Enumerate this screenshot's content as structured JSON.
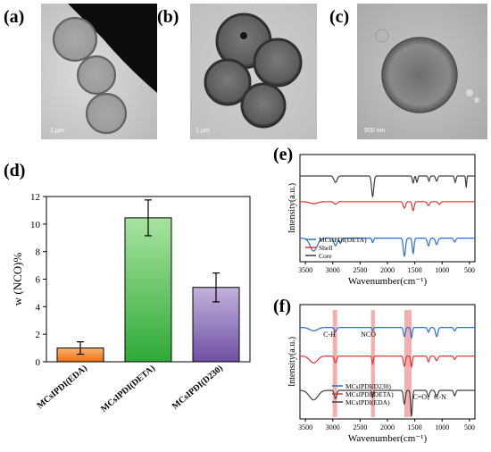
{
  "panels": {
    "a": {
      "label": "(a)",
      "scale": "1 μm"
    },
    "b": {
      "label": "(b)",
      "scale": "1 μm"
    },
    "c": {
      "label": "(c)",
      "scale": "500 nm"
    },
    "d": {
      "label": "(d)"
    },
    "e": {
      "label": "(e)"
    },
    "f": {
      "label": "(f)"
    }
  },
  "chart_data": [
    {
      "id": "d",
      "type": "bar",
      "categories": [
        "MCsIPDI(EDA)",
        "MCsIPDI(DETA)",
        "MCsIPDI(D230)"
      ],
      "values": [
        1.0,
        10.45,
        5.4
      ],
      "errors": [
        0.45,
        1.3,
        1.05
      ],
      "ylabel": "w (NCO)%",
      "ylim": [
        0,
        12
      ],
      "yticks": [
        0,
        2,
        4,
        6,
        8,
        10,
        12
      ],
      "colors_top": [
        "#fbb46f",
        "#a8e3a0",
        "#c4b2dc"
      ],
      "colors_bottom": [
        "#ef6f12",
        "#2faa37",
        "#6e4fa3"
      ]
    },
    {
      "id": "e",
      "type": "line",
      "xlabel": "Wavenumber(cm⁻¹)",
      "ylabel": "Intensity(a.u.)",
      "xlim": [
        3600,
        400
      ],
      "xticks": [
        3500,
        3000,
        2500,
        2000,
        1500,
        1000,
        500
      ],
      "series": [
        {
          "name": "Core",
          "color": "#404040",
          "offset": 0.8,
          "depth": 0.12,
          "peaks": [
            [
              2950,
              0.5,
              40
            ],
            [
              2270,
              1.6,
              28
            ],
            [
              1530,
              0.55,
              20
            ],
            [
              1460,
              0.5,
              18
            ],
            [
              1240,
              0.4,
              20
            ],
            [
              1100,
              0.4,
              25
            ],
            [
              760,
              0.5,
              20
            ],
            [
              560,
              0.9,
              12
            ]
          ]
        },
        {
          "name": "Shell",
          "color": "#e03535",
          "offset": 0.56,
          "depth": 0.12,
          "peaks": [
            [
              3350,
              0.15,
              100
            ],
            [
              2950,
              0.2,
              40
            ],
            [
              1690,
              0.5,
              30
            ],
            [
              1530,
              0.7,
              25
            ],
            [
              1250,
              0.3,
              30
            ],
            [
              1050,
              0.2,
              30
            ]
          ]
        },
        {
          "name": "MCsIPDI(DETA)",
          "color": "#2b6fd6",
          "offset": 0.22,
          "depth": 0.12,
          "peaks": [
            [
              3350,
              1.0,
              90
            ],
            [
              2950,
              0.6,
              40
            ],
            [
              2860,
              0.4,
              25
            ],
            [
              2270,
              0.35,
              20
            ],
            [
              1690,
              1.4,
              28
            ],
            [
              1530,
              1.2,
              22
            ],
            [
              1250,
              0.6,
              28
            ],
            [
              1100,
              0.5,
              30
            ],
            [
              770,
              0.3,
              25
            ]
          ]
        }
      ]
    },
    {
      "id": "f",
      "type": "line",
      "xlabel": "Wavenumber(cm⁻¹)",
      "ylabel": "Intensity(a.u.)",
      "xlim": [
        3600,
        400
      ],
      "xticks": [
        3500,
        3000,
        2500,
        2000,
        1500,
        1000,
        500
      ],
      "annotations": [
        "C-H",
        "NCO",
        "C=O、C-N"
      ],
      "highlight_bands": [
        [
          3000,
          2920
        ],
        [
          2300,
          2230
        ],
        [
          1690,
          1560
        ]
      ],
      "series": [
        {
          "name": "MCsIPDI(D230)",
          "color": "#2b6fd6",
          "offset": 0.8,
          "depth": 0.1,
          "peaks": [
            [
              3350,
              0.3,
              100
            ],
            [
              2950,
              0.35,
              30
            ],
            [
              2270,
              0.3,
              18
            ],
            [
              1690,
              0.8,
              25
            ],
            [
              1560,
              0.9,
              20
            ],
            [
              1250,
              0.4,
              25
            ],
            [
              1100,
              0.8,
              30
            ],
            [
              770,
              0.3,
              25
            ]
          ]
        },
        {
          "name": "MCsIPDI(DETA)",
          "color": "#e03535",
          "offset": 0.55,
          "depth": 0.1,
          "peaks": [
            [
              3350,
              0.6,
              100
            ],
            [
              2950,
              0.6,
              30
            ],
            [
              2270,
              0.7,
              18
            ],
            [
              1690,
              0.9,
              25
            ],
            [
              1560,
              1.0,
              20
            ],
            [
              1250,
              0.5,
              25
            ],
            [
              1100,
              0.4,
              30
            ],
            [
              770,
              0.3,
              25
            ]
          ]
        },
        {
          "name": "MCsIPDI(EDA)",
          "color": "#404040",
          "offset": 0.25,
          "depth": 0.12,
          "peaks": [
            [
              3350,
              0.7,
              110
            ],
            [
              2950,
              0.6,
              30
            ],
            [
              2270,
              0.5,
              18
            ],
            [
              1690,
              1.0,
              25
            ],
            [
              1560,
              1.9,
              22
            ],
            [
              1250,
              0.5,
              25
            ],
            [
              1100,
              0.5,
              30
            ],
            [
              770,
              0.4,
              25
            ]
          ]
        }
      ]
    }
  ]
}
